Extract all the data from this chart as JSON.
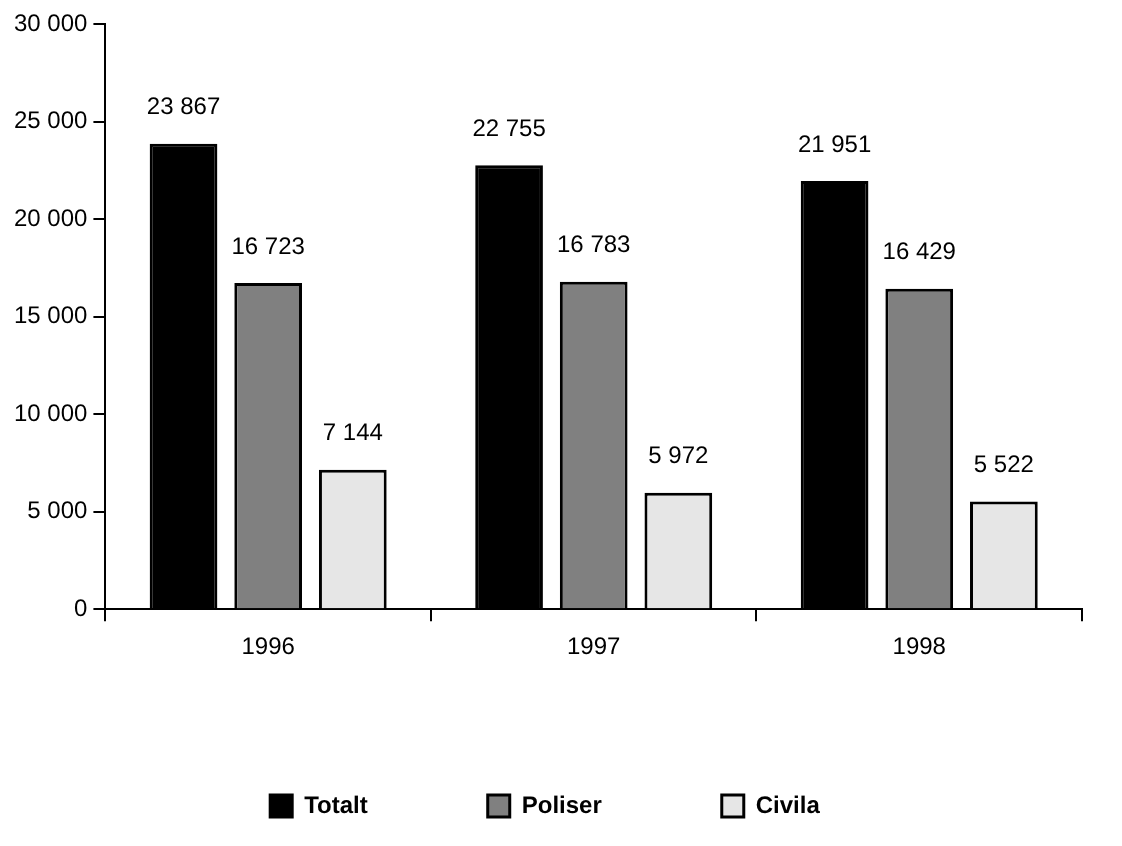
{
  "chart_data": {
    "type": "bar",
    "categories": [
      "1996",
      "1997",
      "1998"
    ],
    "series": [
      {
        "name": "Totalt",
        "color": "#000000",
        "values": [
          23867,
          22755,
          21951
        ],
        "value_labels": [
          "23 867",
          "22 755",
          "21 951"
        ]
      },
      {
        "name": "Poliser",
        "color": "#808080",
        "values": [
          16723,
          16783,
          16429
        ],
        "value_labels": [
          "16 723",
          "16 783",
          "16 429"
        ]
      },
      {
        "name": "Civila",
        "color": "#e6e6e6",
        "values": [
          7144,
          5972,
          5522
        ],
        "value_labels": [
          "7 144",
          "5 972",
          "5 522"
        ]
      }
    ],
    "ylim": [
      0,
      30000
    ],
    "yticks": [
      0,
      {
        "value": 5000,
        "label": "5 000"
      },
      {
        "value": 10000,
        "label": "10 000"
      },
      {
        "value": 15000,
        "label": "15 000"
      },
      {
        "value": 20000,
        "label": "20 000"
      },
      {
        "value": 25000,
        "label": "25 000"
      },
      {
        "value": 30000,
        "label": "30 000"
      }
    ],
    "grid": false,
    "legend": "bottom"
  }
}
